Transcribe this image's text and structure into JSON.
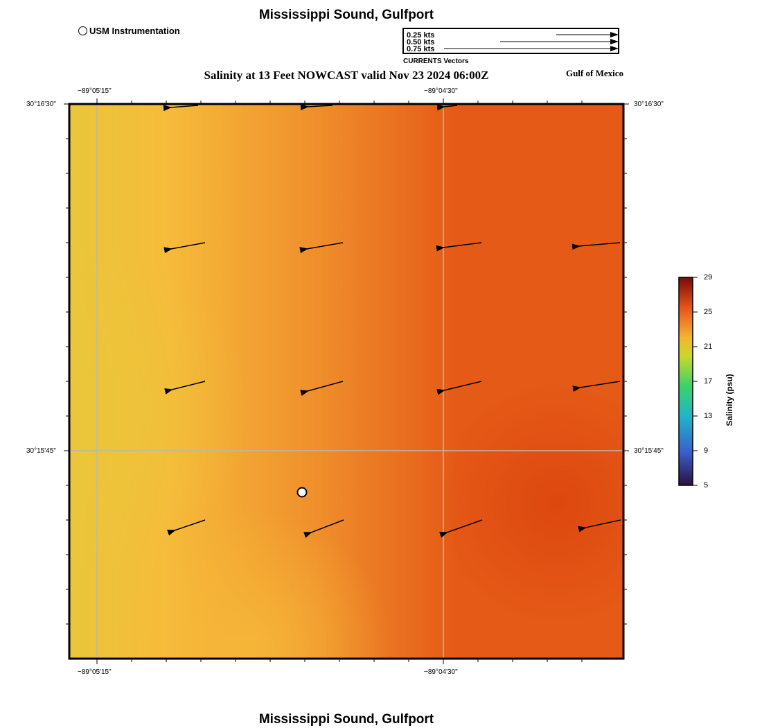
{
  "header": {
    "title": "Mississippi Sound, Gulfport",
    "subtitle": "Salinity at 13 Feet NOWCAST valid Nov 23 2024 06:00Z",
    "region_label": "Gulf of Mexico",
    "footer_title": "Mississippi Sound, Gulfport"
  },
  "legend": {
    "station_label": "USM Instrumentation",
    "vector_caption": "CURRENTS Vectors",
    "vector_scale": [
      {
        "label": "0.25 kts",
        "speed_kts": 0.25
      },
      {
        "label": "0.50 kts",
        "speed_kts": 0.5
      },
      {
        "label": "0.75 kts",
        "speed_kts": 0.75
      }
    ]
  },
  "axes": {
    "top_lon_labels": [
      "−89°05'15\"",
      "−89°04'30\""
    ],
    "bottom_lon_labels": [
      "−89°05'15\"",
      "−89°04'30\""
    ],
    "left_lat_labels": [
      "30°16'30\"",
      "30°15'45\""
    ],
    "right_lat_labels": [
      "30°16'30\"",
      "30°15'45\""
    ]
  },
  "colorbar": {
    "title": "Salinity (psu)",
    "ticks": [
      "29",
      "25",
      "21",
      "17",
      "13",
      "9",
      "5"
    ],
    "min": 5,
    "max": 29,
    "colors": [
      "#2a1140",
      "#3a5fcd",
      "#1fb5c9",
      "#3ed26a",
      "#c8d82a",
      "#f3b62f",
      "#e8561b",
      "#7a0a08"
    ]
  },
  "map": {
    "salinity_colors": {
      "fresh_west": "#eac63a",
      "mid_west": "#f6bb3a",
      "center": "#ef8e2b",
      "east": "#e55a17",
      "east_core": "#db430d"
    },
    "station": {
      "name": "USM Instrumentation",
      "marker": "circle-marker-icon"
    }
  }
}
